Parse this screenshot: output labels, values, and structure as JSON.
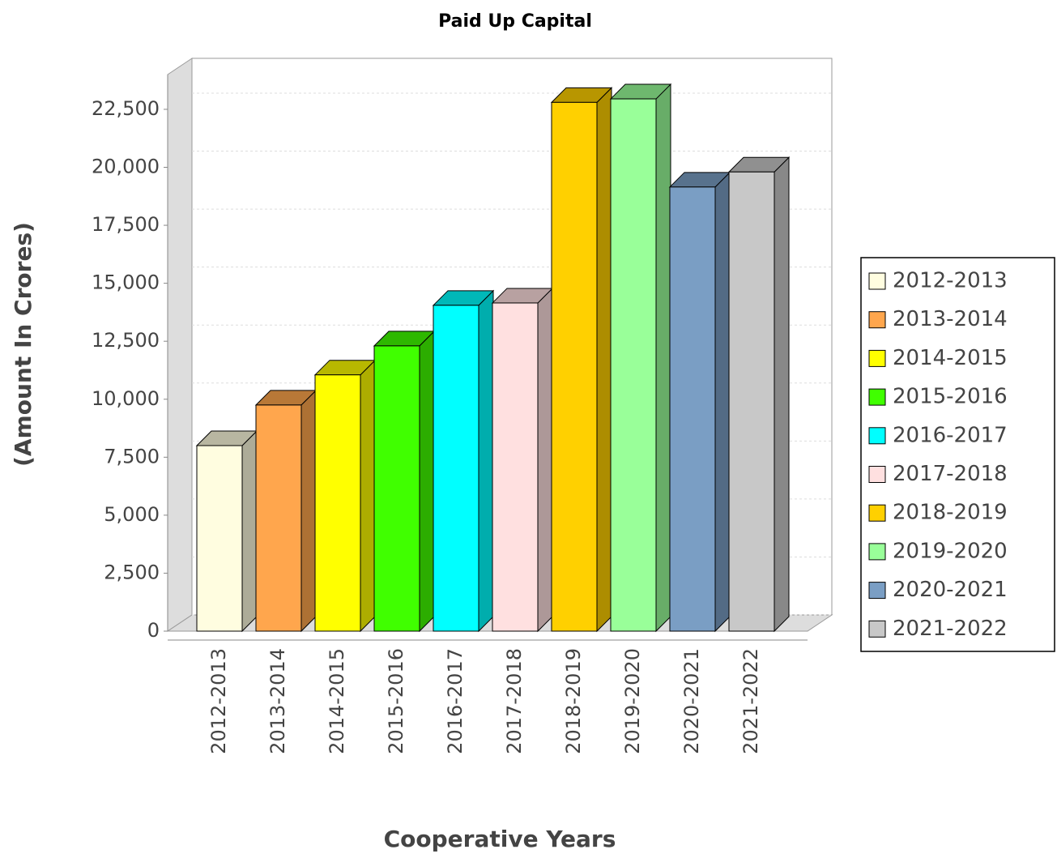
{
  "chart_data": {
    "type": "bar3d",
    "title": "Paid Up Capital",
    "x_label": "Cooperative Years",
    "y_label": "(Amount In Crores)",
    "categories": [
      "2012-2013",
      "2013-2014",
      "2014-2015",
      "2015-2016",
      "2016-2017",
      "2017-2018",
      "2018-2019",
      "2019-2020",
      "2020-2021",
      "2021-2022"
    ],
    "values": [
      8000,
      9750,
      11050,
      12300,
      14050,
      14150,
      22800,
      22950,
      19150,
      19800
    ],
    "colors": [
      "#fffde0",
      "#ffa64d",
      "#ffff00",
      "#40ff00",
      "#00ffff",
      "#ffe0e0",
      "#ffd000",
      "#99ff99",
      "#7a9ec4",
      "#c8c8c8"
    ],
    "ylim": [
      0,
      24000
    ],
    "yticks": [
      0,
      {
        "value": 2500,
        "label": "2,500"
      },
      {
        "value": 5000,
        "label": "5,000"
      },
      {
        "value": 7500,
        "label": "7,500"
      },
      {
        "value": 10000,
        "label": "10,000"
      },
      {
        "value": 12500,
        "label": "12,500"
      },
      {
        "value": 15000,
        "label": "15,000"
      },
      {
        "value": 17500,
        "label": "17,500"
      },
      {
        "value": 20000,
        "label": "20,000"
      },
      {
        "value": 22500,
        "label": "22,500"
      }
    ],
    "grid": true,
    "legend": "right"
  }
}
